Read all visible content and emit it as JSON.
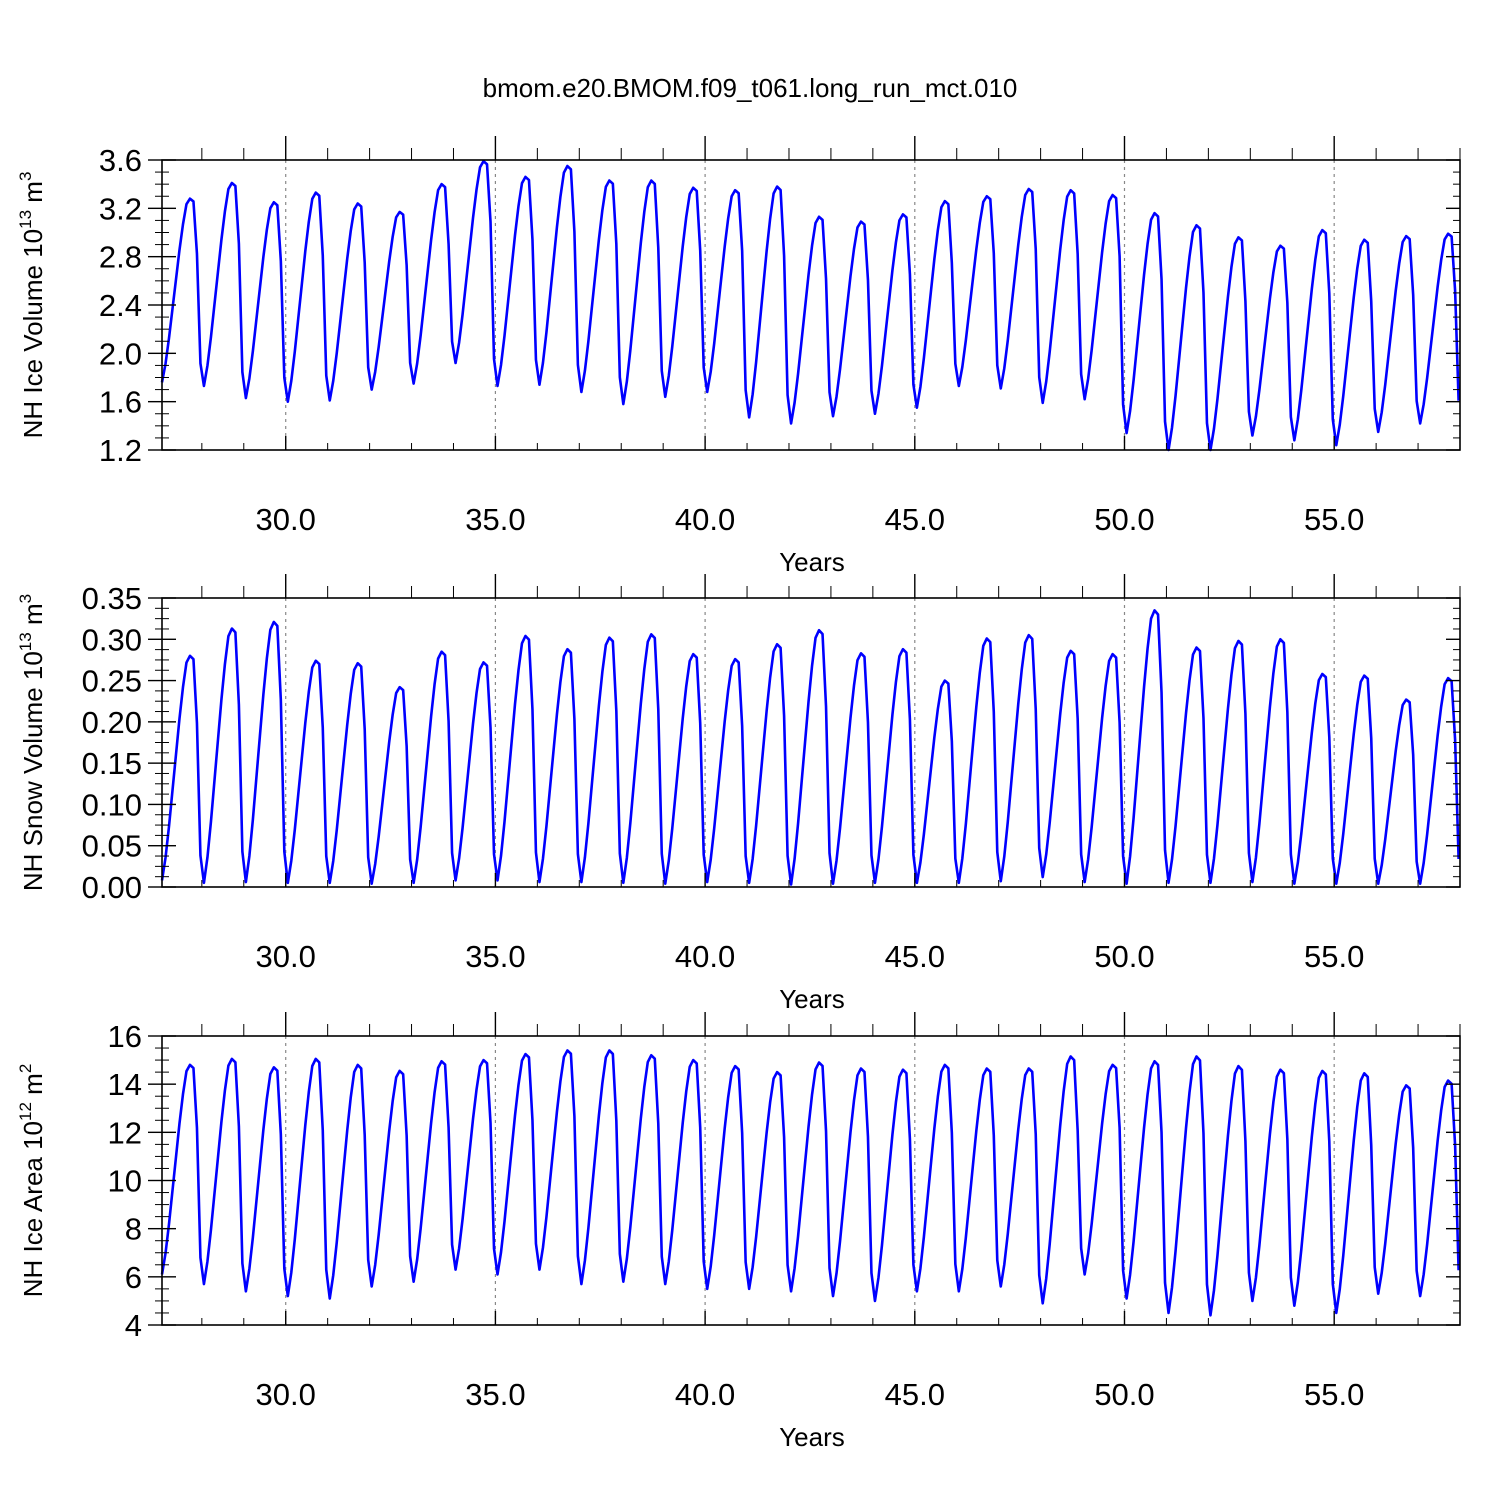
{
  "title": "bmom.e20.BMOM.f09_t061.long_run_mct.010",
  "line_color": "#0000ff",
  "chart_data": [
    {
      "type": "line",
      "ylabel": "NH Ice Volume 10",
      "ylabel_exp": "13",
      "ylabel_unit": " m",
      "ylabel_unit_exp": "3",
      "xlabel": "Years",
      "xlim": [
        27.05,
        58.0
      ],
      "ylim": [
        1.2,
        3.6
      ],
      "yticks": [
        1.2,
        1.6,
        2.0,
        2.4,
        2.8,
        3.2,
        3.6
      ],
      "ytick_labels": [
        "1.2",
        "1.6",
        "2.0",
        "2.4",
        "2.8",
        "3.2",
        "3.6"
      ],
      "xticks": [
        30,
        35,
        40,
        45,
        50,
        55
      ],
      "xtick_labels": [
        "30.0",
        "35.0",
        "40.0",
        "45.0",
        "50.0",
        "55.0"
      ],
      "grid": "dashed vertical lines at x ticks",
      "monthly_cycle": {
        "start_year": 27.05,
        "maxima": [
          3.28,
          3.41,
          3.25,
          3.33,
          3.24,
          3.17,
          3.4,
          3.59,
          3.46,
          3.55,
          3.43,
          3.43,
          3.37,
          3.35,
          3.38,
          3.13,
          3.09,
          3.15,
          3.26,
          3.3,
          3.36,
          3.35,
          3.31,
          3.16,
          3.06,
          2.96,
          2.89,
          3.02,
          2.94,
          2.97,
          2.99
        ],
        "minima": [
          1.76,
          1.73,
          1.63,
          1.6,
          1.61,
          1.7,
          1.75,
          1.92,
          1.73,
          1.74,
          1.68,
          1.58,
          1.64,
          1.68,
          1.47,
          1.42,
          1.48,
          1.5,
          1.55,
          1.73,
          1.71,
          1.59,
          1.62,
          1.34,
          1.2,
          1.2,
          1.32,
          1.28,
          1.24,
          1.35,
          1.42
        ]
      }
    },
    {
      "type": "line",
      "ylabel": "NH Snow Volume 10",
      "ylabel_exp": "13",
      "ylabel_unit": " m",
      "ylabel_unit_exp": "3",
      "xlabel": "Years",
      "xlim": [
        27.05,
        58.0
      ],
      "ylim": [
        0.0,
        0.35
      ],
      "yticks": [
        0.0,
        0.05,
        0.1,
        0.15,
        0.2,
        0.25,
        0.3,
        0.35
      ],
      "ytick_labels": [
        "0.00",
        "0.05",
        "0.10",
        "0.15",
        "0.20",
        "0.25",
        "0.30",
        "0.35"
      ],
      "xticks": [
        30,
        35,
        40,
        45,
        50,
        55
      ],
      "xtick_labels": [
        "30.0",
        "35.0",
        "40.0",
        "45.0",
        "50.0",
        "55.0"
      ],
      "grid": "dashed vertical lines at x ticks",
      "monthly_cycle": {
        "start_year": 27.05,
        "maxima": [
          0.28,
          0.313,
          0.321,
          0.274,
          0.271,
          0.242,
          0.285,
          0.272,
          0.304,
          0.288,
          0.302,
          0.306,
          0.282,
          0.276,
          0.294,
          0.311,
          0.283,
          0.288,
          0.25,
          0.301,
          0.305,
          0.286,
          0.282,
          0.335,
          0.29,
          0.298,
          0.3,
          0.258,
          0.256,
          0.227,
          0.253
        ],
        "minima": [
          0.008,
          0.005,
          0.006,
          0.005,
          0.005,
          0.004,
          0.005,
          0.008,
          0.008,
          0.006,
          0.006,
          0.005,
          0.004,
          0.006,
          0.005,
          0.003,
          0.004,
          0.005,
          0.005,
          0.005,
          0.007,
          0.012,
          0.006,
          0.004,
          0.005,
          0.005,
          0.006,
          0.004,
          0.004,
          0.004,
          0.004
        ]
      }
    },
    {
      "type": "line",
      "ylabel": "NH Ice Area 10",
      "ylabel_exp": "12",
      "ylabel_unit": " m",
      "ylabel_unit_exp": "2",
      "xlabel": "Years",
      "xlim": [
        27.05,
        58.0
      ],
      "ylim": [
        4,
        16
      ],
      "yticks": [
        4,
        6,
        8,
        10,
        12,
        14,
        16
      ],
      "ytick_labels": [
        "4",
        "6",
        "8",
        "10",
        "12",
        "14",
        "16"
      ],
      "xticks": [
        30,
        35,
        40,
        45,
        50,
        55
      ],
      "xtick_labels": [
        "30.0",
        "35.0",
        "40.0",
        "45.0",
        "50.0",
        "55.0"
      ],
      "grid": "dashed vertical lines at x ticks",
      "monthly_cycle": {
        "start_year": 27.05,
        "maxima": [
          14.8,
          15.05,
          14.7,
          15.05,
          14.8,
          14.55,
          14.95,
          15.0,
          15.25,
          15.4,
          15.4,
          15.2,
          15.0,
          14.75,
          14.5,
          14.9,
          14.65,
          14.6,
          14.8,
          14.65,
          14.65,
          15.15,
          14.8,
          14.95,
          15.15,
          14.75,
          14.6,
          14.55,
          14.45,
          13.95,
          14.15
        ],
        "minima": [
          6.1,
          5.7,
          5.4,
          5.2,
          5.1,
          5.6,
          5.8,
          6.3,
          6.1,
          6.3,
          5.7,
          5.8,
          5.7,
          5.5,
          5.5,
          5.4,
          5.2,
          5.0,
          5.4,
          5.4,
          5.6,
          4.9,
          6.1,
          5.1,
          4.5,
          4.4,
          5.0,
          4.8,
          4.5,
          5.3,
          5.2
        ]
      }
    }
  ]
}
